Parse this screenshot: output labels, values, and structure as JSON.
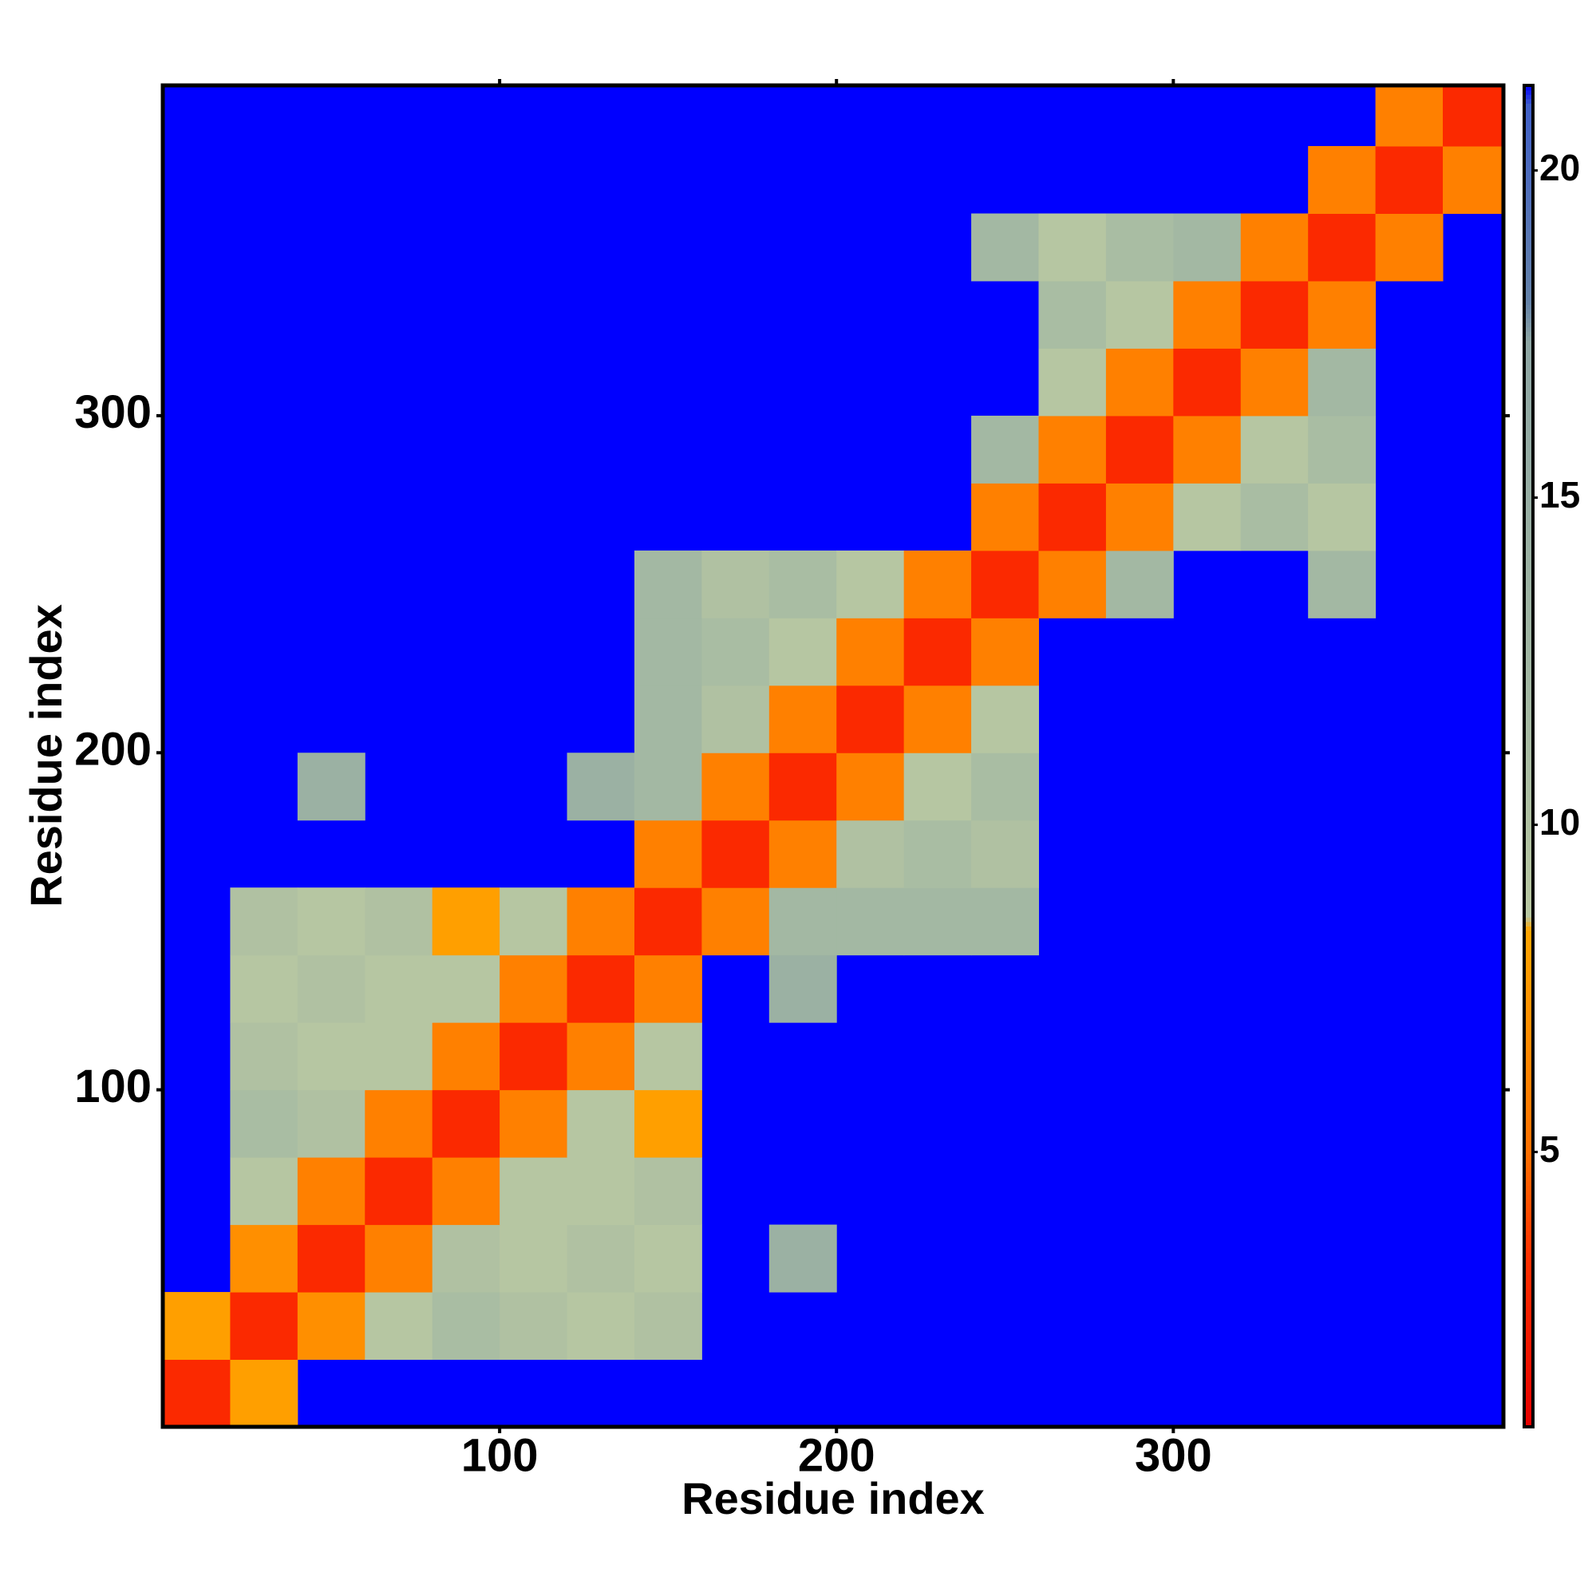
{
  "chart_data": {
    "type": "heatmap",
    "x_label": "Residue index",
    "y_label": "Residue index",
    "xlim": [
      0,
      398
    ],
    "ylim": [
      0,
      398
    ],
    "xticks": [
      100,
      200,
      300
    ],
    "yticks": [
      100,
      200,
      300
    ],
    "bins": [
      0,
      20,
      40,
      60,
      80,
      100,
      120,
      140,
      160,
      180,
      200,
      220,
      240,
      260,
      280,
      300,
      320,
      340,
      360,
      380,
      398
    ],
    "values": [
      [
        3,
        8,
        null,
        null,
        null,
        null,
        null,
        null,
        null,
        null,
        null,
        null,
        null,
        null,
        null,
        null,
        null,
        null,
        null,
        null
      ],
      [
        8,
        3,
        7,
        9,
        11,
        10,
        9,
        10,
        null,
        null,
        null,
        null,
        null,
        null,
        null,
        null,
        null,
        null,
        null,
        null
      ],
      [
        null,
        7,
        3,
        6,
        10,
        9,
        10,
        9,
        null,
        14,
        null,
        null,
        null,
        null,
        null,
        null,
        null,
        null,
        null,
        null
      ],
      [
        null,
        9,
        6,
        3,
        6,
        9,
        9,
        10,
        null,
        null,
        null,
        null,
        null,
        null,
        null,
        null,
        null,
        null,
        null,
        null
      ],
      [
        null,
        11,
        10,
        6,
        3,
        6,
        9,
        8,
        null,
        null,
        null,
        null,
        null,
        null,
        null,
        null,
        null,
        null,
        null,
        null
      ],
      [
        null,
        10,
        9,
        9,
        6,
        3,
        6,
        9,
        null,
        null,
        null,
        null,
        null,
        null,
        null,
        null,
        null,
        null,
        null,
        null
      ],
      [
        null,
        9,
        10,
        9,
        9,
        6,
        3,
        6,
        null,
        14,
        null,
        null,
        null,
        null,
        null,
        null,
        null,
        null,
        null,
        null
      ],
      [
        null,
        10,
        9,
        10,
        8,
        9,
        6,
        3,
        6,
        12,
        12,
        12,
        12,
        null,
        null,
        null,
        null,
        null,
        null,
        null
      ],
      [
        null,
        null,
        null,
        null,
        null,
        null,
        null,
        6,
        3,
        6,
        10,
        11,
        10,
        null,
        null,
        null,
        null,
        null,
        null,
        null
      ],
      [
        null,
        null,
        14,
        null,
        null,
        null,
        14,
        12,
        6,
        3,
        6,
        9,
        11,
        null,
        null,
        null,
        null,
        null,
        null,
        null
      ],
      [
        null,
        null,
        null,
        null,
        null,
        null,
        null,
        12,
        10,
        6,
        3,
        6,
        9,
        null,
        null,
        null,
        null,
        null,
        null,
        null
      ],
      [
        null,
        null,
        null,
        null,
        null,
        null,
        null,
        12,
        11,
        9,
        6,
        3,
        6,
        null,
        null,
        null,
        null,
        null,
        null,
        null
      ],
      [
        null,
        null,
        null,
        null,
        null,
        null,
        null,
        12,
        10,
        11,
        9,
        6,
        3,
        6,
        12,
        null,
        null,
        12,
        null,
        null
      ],
      [
        null,
        null,
        null,
        null,
        null,
        null,
        null,
        null,
        null,
        null,
        null,
        null,
        6,
        3,
        6,
        9,
        11,
        9,
        null,
        null
      ],
      [
        null,
        null,
        null,
        null,
        null,
        null,
        null,
        null,
        null,
        null,
        null,
        null,
        12,
        6,
        3,
        6,
        9,
        11,
        null,
        null
      ],
      [
        null,
        null,
        null,
        null,
        null,
        null,
        null,
        null,
        null,
        null,
        null,
        null,
        null,
        9,
        6,
        3,
        6,
        12,
        null,
        null
      ],
      [
        null,
        null,
        null,
        null,
        null,
        null,
        null,
        null,
        null,
        null,
        null,
        null,
        null,
        11,
        9,
        6,
        3,
        6,
        null,
        null
      ],
      [
        null,
        null,
        null,
        null,
        null,
        null,
        null,
        null,
        null,
        null,
        null,
        null,
        12,
        9,
        11,
        12,
        6,
        3,
        6,
        null
      ],
      [
        null,
        null,
        null,
        null,
        null,
        null,
        null,
        null,
        null,
        null,
        null,
        null,
        null,
        null,
        null,
        null,
        null,
        6,
        3,
        6
      ],
      [
        null,
        null,
        null,
        null,
        null,
        null,
        null,
        null,
        null,
        null,
        null,
        null,
        null,
        null,
        null,
        null,
        null,
        null,
        6,
        3
      ]
    ],
    "background_color": "#0000ff",
    "colorscale": [
      [
        0.8,
        "#e60000"
      ],
      [
        3.4,
        "#ff3000"
      ],
      [
        5,
        "#ff7000"
      ],
      [
        8.4,
        "#ffa500"
      ],
      [
        8.6,
        "#b9c8a2"
      ],
      [
        12,
        "#a3b8a3"
      ],
      [
        17.4,
        "#8ea6a4"
      ],
      [
        18,
        "#6482a8"
      ],
      [
        21,
        "#4060c8"
      ],
      [
        21.3,
        "#0000ff"
      ]
    ],
    "colorbar": {
      "lim": [
        0.8,
        21.3
      ],
      "ticks": [
        5,
        10,
        15,
        20
      ]
    }
  }
}
